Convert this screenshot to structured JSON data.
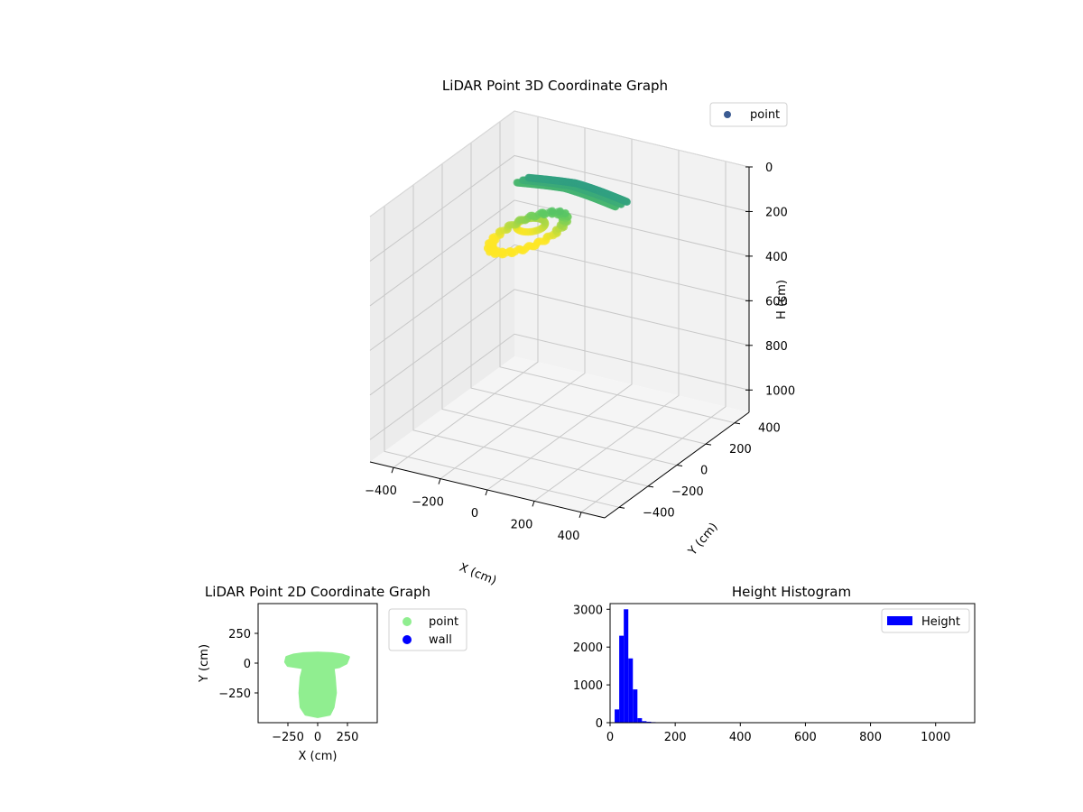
{
  "chart_data": [
    {
      "type": "scatter",
      "projection": "3d",
      "title": "LiDAR Point 3D Coordinate Graph",
      "xlabel": "X (cm)",
      "ylabel": "Y (cm)",
      "zlabel": "H (cm)",
      "xlim": [
        -500,
        500
      ],
      "ylim": [
        -500,
        500
      ],
      "zlim": [
        0,
        1100
      ],
      "z_inverted": true,
      "x_ticks": [
        -400,
        -200,
        0,
        200,
        400
      ],
      "y_ticks": [
        -400,
        -200,
        0,
        200,
        400
      ],
      "z_ticks": [
        0,
        200,
        400,
        600,
        800,
        1000
      ],
      "x_tick_labels": [
        "−400",
        "−200",
        "0",
        "200",
        "400"
      ],
      "y_tick_labels": [
        "−400",
        "−200",
        "0",
        "200",
        "400"
      ],
      "z_tick_labels": [
        "0",
        "200",
        "400",
        "600",
        "800",
        "1000"
      ],
      "colormap": "viridis",
      "legend": [
        {
          "label": "point",
          "color": "#3b5b92"
        }
      ],
      "legend_position": "upper right",
      "grid": true,
      "series": [
        {
          "name": "point",
          "description_points": [
            {
              "x": 0,
              "y": 60,
              "h": 10
            },
            {
              "x": 100,
              "y": 50,
              "h": 20
            },
            {
              "x": 190,
              "y": 30,
              "h": 30
            },
            {
              "x": -180,
              "y": 40,
              "h": 30
            },
            {
              "x": -90,
              "y": 60,
              "h": 15
            },
            {
              "x": 50,
              "y": 0,
              "h": 40
            },
            {
              "x": -50,
              "y": -100,
              "h": 60
            },
            {
              "x": 30,
              "y": -200,
              "h": 70
            },
            {
              "x": -40,
              "y": -300,
              "h": 90
            },
            {
              "x": 40,
              "y": -380,
              "h": 100
            },
            {
              "x": -20,
              "y": -420,
              "h": 110
            },
            {
              "x": 60,
              "y": -250,
              "h": 80
            }
          ]
        }
      ]
    },
    {
      "type": "scatter",
      "title": "LiDAR Point 2D Coordinate Graph",
      "xlabel": "X (cm)",
      "ylabel": "Y (cm)",
      "xlim": [
        -500,
        500
      ],
      "ylim": [
        -500,
        500
      ],
      "x_ticks": [
        -250,
        0,
        250
      ],
      "y_ticks": [
        -250,
        0,
        250
      ],
      "x_tick_labels": [
        "−250",
        "0",
        "250"
      ],
      "y_tick_labels": [
        "−250",
        "0",
        "250"
      ],
      "legend": [
        {
          "label": "point",
          "color": "#90ee90"
        },
        {
          "label": "wall",
          "color": "#0000ff"
        }
      ],
      "legend_position": "outside right",
      "series": [
        {
          "name": "point",
          "color": "#90ee90",
          "outline": [
            [
              -270,
              10
            ],
            [
              -260,
              50
            ],
            [
              -200,
              70
            ],
            [
              -120,
              80
            ],
            [
              0,
              85
            ],
            [
              120,
              80
            ],
            [
              200,
              70
            ],
            [
              260,
              50
            ],
            [
              240,
              0
            ],
            [
              180,
              -30
            ],
            [
              130,
              -40
            ],
            [
              140,
              -120
            ],
            [
              150,
              -250
            ],
            [
              130,
              -370
            ],
            [
              100,
              -430
            ],
            [
              0,
              -450
            ],
            [
              -100,
              -430
            ],
            [
              -140,
              -370
            ],
            [
              -150,
              -250
            ],
            [
              -140,
              -120
            ],
            [
              -120,
              -40
            ],
            [
              -180,
              -30
            ],
            [
              -250,
              -20
            ]
          ]
        },
        {
          "name": "wall",
          "color": "#0000ff",
          "values": []
        }
      ]
    },
    {
      "type": "bar",
      "subtype": "histogram",
      "title": "Height Histogram",
      "xlim": [
        0,
        1120
      ],
      "ylim": [
        0,
        3150
      ],
      "x_ticks": [
        0,
        200,
        400,
        600,
        800,
        1000
      ],
      "y_ticks": [
        0,
        1000,
        2000,
        3000
      ],
      "legend": [
        {
          "label": "Height",
          "color": "#0000ff"
        }
      ],
      "legend_position": "upper right",
      "bin_width": 14,
      "bins": [
        {
          "x0": 0,
          "x1": 14,
          "count": 0
        },
        {
          "x0": 14,
          "x1": 28,
          "count": 350
        },
        {
          "x0": 28,
          "x1": 42,
          "count": 2300
        },
        {
          "x0": 42,
          "x1": 56,
          "count": 3000
        },
        {
          "x0": 56,
          "x1": 70,
          "count": 1700
        },
        {
          "x0": 70,
          "x1": 84,
          "count": 880
        },
        {
          "x0": 84,
          "x1": 98,
          "count": 120
        },
        {
          "x0": 98,
          "x1": 112,
          "count": 40
        },
        {
          "x0": 112,
          "x1": 126,
          "count": 25
        },
        {
          "x0": 126,
          "x1": 140,
          "count": 15
        },
        {
          "x0": 140,
          "x1": 154,
          "count": 10
        },
        {
          "x0": 154,
          "x1": 168,
          "count": 8
        },
        {
          "x0": 168,
          "x1": 182,
          "count": 3
        }
      ],
      "series": [
        {
          "name": "Height",
          "color": "#0000ff"
        }
      ]
    }
  ]
}
